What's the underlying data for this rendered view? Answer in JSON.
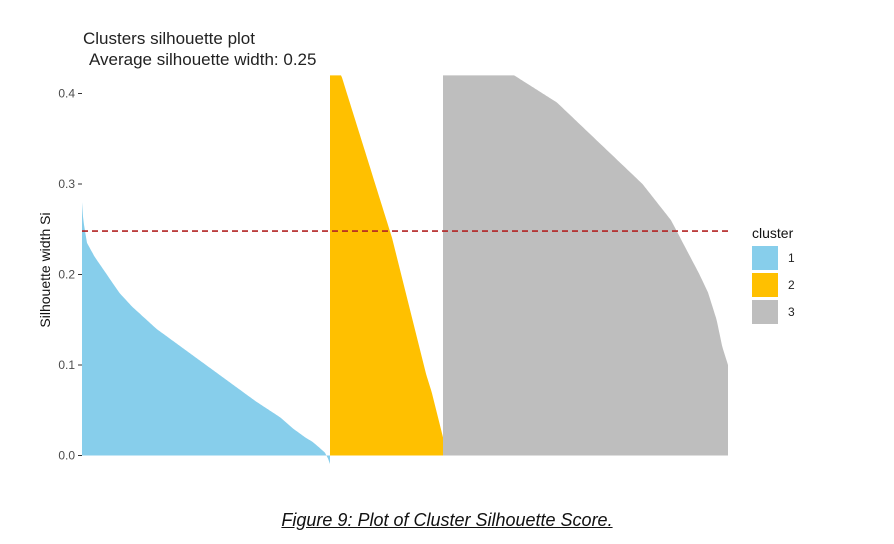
{
  "chart_data": {
    "type": "bar",
    "title": "Clusters silhouette plot",
    "subtitle": "Average silhouette width: 0.25",
    "xlabel": "",
    "ylabel": "Silhouette width Si",
    "ylim": [
      -0.01,
      0.42
    ],
    "yticks": [
      "0.0",
      "0.1",
      "0.2",
      "0.3",
      "0.4"
    ],
    "ytick_values": [
      0,
      0.1,
      0.2,
      0.3,
      0.4
    ],
    "grid": false,
    "average_line": {
      "value": 0.248,
      "color": "#b22222",
      "style": "dashed"
    },
    "legend": {
      "title": "cluster",
      "placement": "right"
    },
    "series": [
      {
        "name": "1",
        "color": "#87ceeb",
        "profile_fraction": [
          0,
          0.005,
          0.02,
          0.05,
          0.1,
          0.15,
          0.2,
          0.3,
          0.4,
          0.5,
          0.6,
          0.7,
          0.8,
          0.85,
          0.9,
          0.93,
          0.96,
          0.98,
          0.995,
          1
        ],
        "profile_width": [
          0.28,
          0.26,
          0.235,
          0.22,
          0.2,
          0.18,
          0.165,
          0.14,
          0.12,
          0.1,
          0.08,
          0.06,
          0.042,
          0.03,
          0.02,
          0.015,
          0.008,
          0.003,
          -0.005,
          -0.012
        ]
      },
      {
        "name": "2",
        "color": "#ffc000",
        "profile_fraction": [
          0,
          0.1,
          0.2,
          0.3,
          0.4,
          0.5,
          0.55,
          0.6,
          0.65,
          0.7,
          0.75,
          0.8,
          0.85,
          0.9,
          0.95,
          1
        ],
        "profile_width": [
          0.42,
          0.42,
          0.38,
          0.34,
          0.3,
          0.26,
          0.24,
          0.215,
          0.19,
          0.165,
          0.14,
          0.115,
          0.09,
          0.07,
          0.045,
          0.02
        ]
      },
      {
        "name": "3",
        "color": "#bebebe",
        "profile_fraction": [
          0,
          0.25,
          0.3,
          0.35,
          0.4,
          0.5,
          0.6,
          0.7,
          0.75,
          0.8,
          0.85,
          0.9,
          0.93,
          0.96,
          0.98,
          1
        ],
        "profile_width": [
          0.42,
          0.42,
          0.41,
          0.4,
          0.39,
          0.36,
          0.33,
          0.3,
          0.28,
          0.26,
          0.23,
          0.2,
          0.18,
          0.15,
          0.12,
          0.1
        ]
      }
    ]
  },
  "caption": "Figure 9: Plot of Cluster Silhouette Score."
}
